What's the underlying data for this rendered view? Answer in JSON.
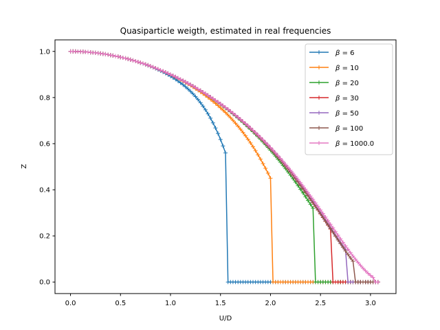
{
  "chart_data": {
    "type": "line",
    "title": "Quasiparticle weigth, estimated in real frequencies",
    "xlabel": "U/D",
    "ylabel": "Z",
    "xlim": [
      -0.155,
      3.255
    ],
    "ylim": [
      -0.05,
      1.05
    ],
    "xticks": [
      0.0,
      0.5,
      1.0,
      1.5,
      2.0,
      2.5,
      3.0
    ],
    "xtick_labels": [
      "0.0",
      "0.5",
      "1.0",
      "1.5",
      "2.0",
      "2.5",
      "3.0"
    ],
    "yticks": [
      0.0,
      0.2,
      0.4,
      0.6,
      0.8,
      1.0
    ],
    "ytick_labels": [
      "0.0",
      "0.2",
      "0.4",
      "0.6",
      "0.8",
      "1.0"
    ],
    "grid": false,
    "legend_position": "upper-right",
    "marker": "+",
    "x_step": 0.025,
    "x_max": 3.075,
    "series": [
      {
        "name": "β = 6",
        "legend_prefix": "β",
        "legend_value": "6",
        "color": "#1f77b4",
        "uc": 1.55,
        "z_at_uc": 0.56
      },
      {
        "name": "β = 10",
        "legend_prefix": "β",
        "legend_value": "10",
        "color": "#ff7f0e",
        "uc": 2.0,
        "z_at_uc": 0.45
      },
      {
        "name": "β = 20",
        "legend_prefix": "β",
        "legend_value": "20",
        "color": "#2ca02c",
        "uc": 2.425,
        "z_at_uc": 0.32
      },
      {
        "name": "β = 30",
        "legend_prefix": "β",
        "legend_value": "30",
        "color": "#d62728",
        "uc": 2.6,
        "z_at_uc": 0.23
      },
      {
        "name": "β = 50",
        "legend_prefix": "β",
        "legend_value": "50",
        "color": "#9467bd",
        "uc": 2.75,
        "z_at_uc": 0.14
      },
      {
        "name": "β = 100",
        "legend_prefix": "β",
        "legend_value": "100",
        "color": "#8c564b",
        "uc": 2.825,
        "z_at_uc": 0.09
      },
      {
        "name": "β = 1000.0",
        "legend_prefix": "β",
        "legend_value": "1000.0",
        "color": "#e377c2",
        "uc": 3.025,
        "z_at_uc": 0.02
      }
    ]
  }
}
